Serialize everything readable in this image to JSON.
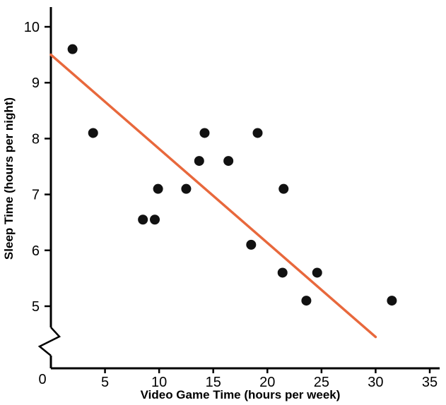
{
  "chart_data": {
    "type": "scatter",
    "title": "",
    "xlabel": "Video Game Time (hours per week)",
    "ylabel": "Sleep Time (hours per night)",
    "xlim": [
      0,
      35
    ],
    "ylim": [
      5,
      10
    ],
    "x_ticks": [
      5,
      10,
      15,
      20,
      25,
      30,
      35
    ],
    "y_ticks": [
      5,
      6,
      7,
      8,
      9,
      10
    ],
    "origin_label": "0",
    "axis_break": true,
    "grid": false,
    "legend": "none",
    "points": [
      {
        "x": 2.0,
        "y": 9.6
      },
      {
        "x": 3.9,
        "y": 8.1
      },
      {
        "x": 8.5,
        "y": 6.55
      },
      {
        "x": 9.6,
        "y": 6.55
      },
      {
        "x": 9.9,
        "y": 7.1
      },
      {
        "x": 12.5,
        "y": 7.1
      },
      {
        "x": 13.7,
        "y": 7.6
      },
      {
        "x": 14.2,
        "y": 8.1
      },
      {
        "x": 16.4,
        "y": 7.6
      },
      {
        "x": 18.5,
        "y": 6.1
      },
      {
        "x": 19.1,
        "y": 8.1
      },
      {
        "x": 21.4,
        "y": 5.6
      },
      {
        "x": 21.5,
        "y": 7.1
      },
      {
        "x": 23.6,
        "y": 5.1
      },
      {
        "x": 24.6,
        "y": 5.6
      },
      {
        "x": 31.5,
        "y": 5.1
      }
    ],
    "trend_line": {
      "start": {
        "x": 0,
        "y": 9.5
      },
      "end": {
        "x": 30,
        "y": 4.45
      },
      "color": "#e8683c",
      "width": 3.5
    },
    "point_color": "#111111",
    "point_radius": 7,
    "axis_color": "#000000",
    "background": "#ffffff"
  }
}
